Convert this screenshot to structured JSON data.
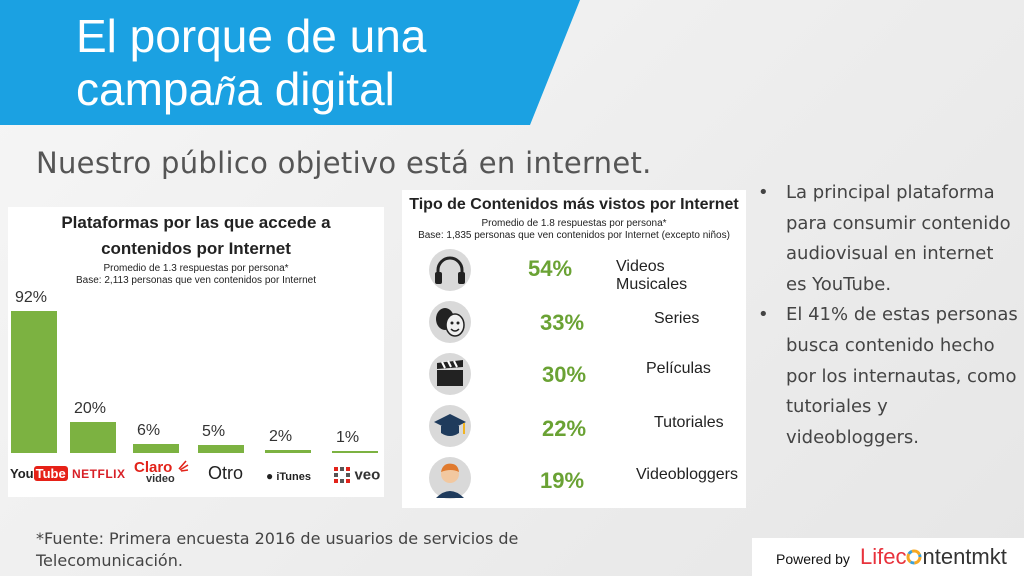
{
  "slide": {
    "title": "El porque de una campaña digital",
    "title_line1": "El porque de una",
    "title_line2_start": "campa",
    "title_line2_enye": "ñ",
    "title_line2_end": "a digital",
    "subtitle": "Nuestro público objetivo está en internet.",
    "banner_color": "#1ba1e2"
  },
  "platforms_chart": {
    "title_line1": "Plataformas por las que accede a",
    "title_line2": "contenidos por Internet",
    "note_line1": "Promedio de 1.3 respuestas por persona*",
    "note_line2": "Base: 2,113 personas que ven contenidos por Internet"
  },
  "platform_logos": {
    "youtube_you": "You",
    "youtube_tube": "Tube",
    "netflix": "NETFLIX",
    "claro": "Claro",
    "claro_video": "video",
    "otro": "Otro",
    "itunes": "iTunes",
    "veo": "veo"
  },
  "content_chart": {
    "title": "Tipo de Contenidos más vistos por Internet",
    "note_line1": "Promedio de 1.8 respuestas por persona*",
    "note_line2": "Base: 1,835 personas que ven contenidos por Internet (excepto niños)",
    "rows": [
      {
        "pct": "54%",
        "label": "Videos Musicales",
        "icon": "headphones-icon"
      },
      {
        "pct": "33%",
        "label": "Series",
        "icon": "theater-masks-icon"
      },
      {
        "pct": "30%",
        "label": "Películas",
        "icon": "clapperboard-icon"
      },
      {
        "pct": "22%",
        "label": "Tutoriales",
        "icon": "graduation-cap-icon"
      },
      {
        "pct": "19%",
        "label": "Videobloggers",
        "icon": "person-avatar-icon"
      }
    ]
  },
  "bullets": [
    "La principal plataforma para consumir contenido audiovisual en internet es YouTube.",
    "El 41% de estas personas busca contenido hecho por los internautas, como tutoriales y videobloggers."
  ],
  "source_note": "*Fuente: Primera encuesta 2016 de usuarios de servicios de Telecomunicación.",
  "powered": {
    "label": "Powered by",
    "brand_life": "Life",
    "brand_c": "c",
    "brand_rest": "ntentmkt"
  },
  "chart_data": {
    "type": "bar",
    "title": "Plataformas por las que accede a contenidos por Internet",
    "categories": [
      "YouTube",
      "Netflix",
      "Claro video",
      "Otro",
      "iTunes",
      "veo"
    ],
    "values": [
      92,
      20,
      6,
      5,
      2,
      1
    ],
    "value_labels": [
      "92%",
      "20%",
      "6%",
      "5%",
      "2%",
      "1%"
    ],
    "ylim": [
      0,
      100
    ],
    "grid": false,
    "bar_color": "#7cb241"
  }
}
